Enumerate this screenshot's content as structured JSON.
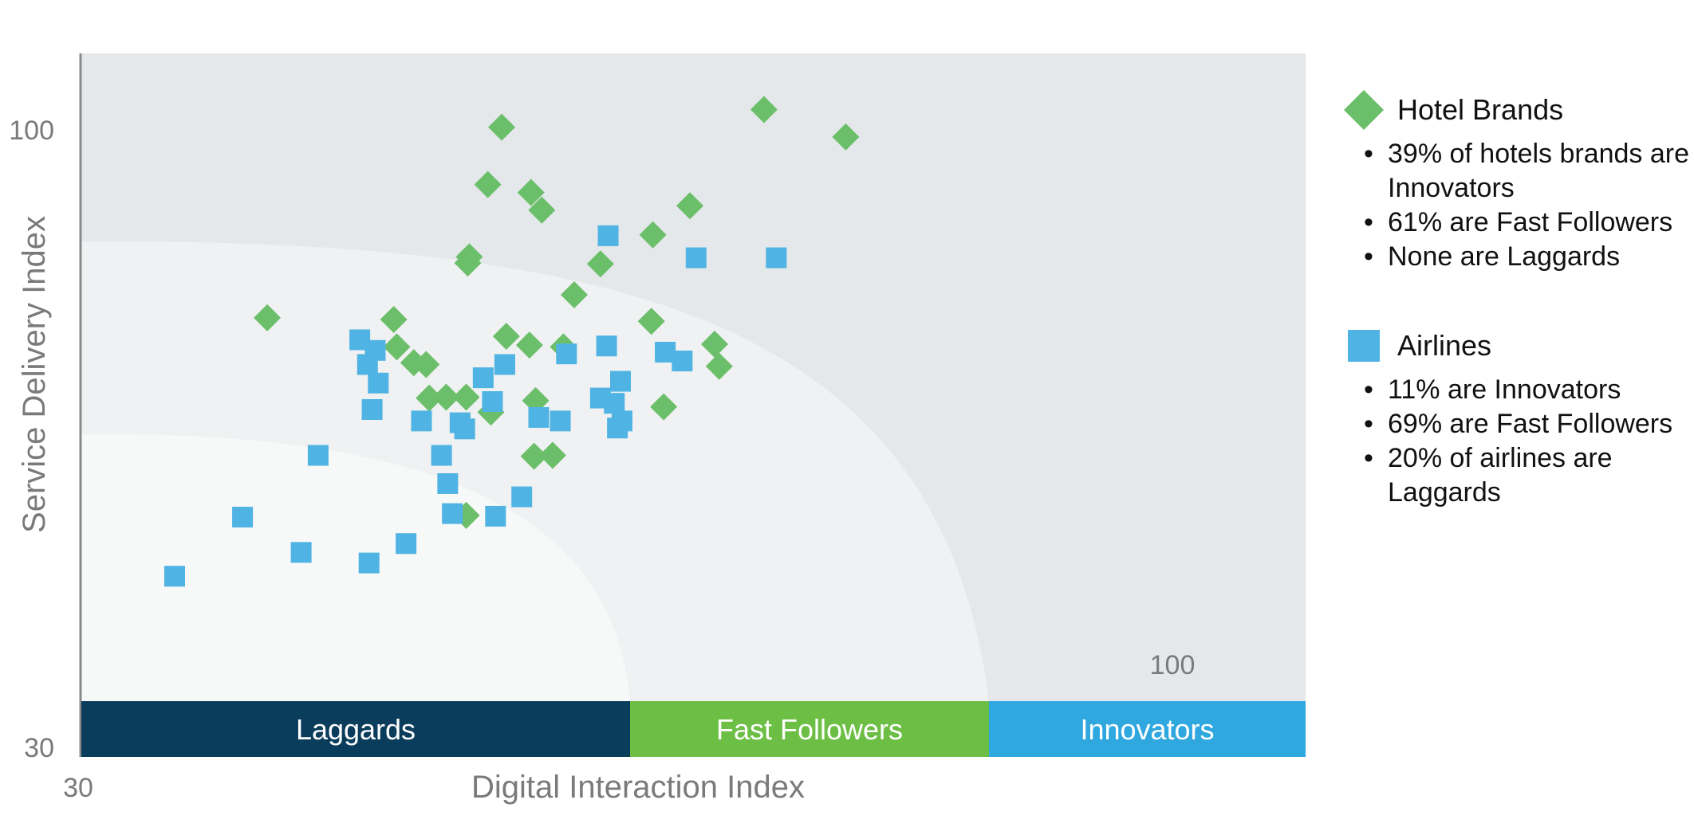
{
  "chart_data": {
    "type": "scatter",
    "title": "",
    "xlabel": "Digital Interaction Index",
    "ylabel": "Service Delivery Index",
    "xlim": [
      30,
      100
    ],
    "ylim": [
      30,
      100
    ],
    "x_ticks": [
      "30"
    ],
    "y_ticks": [
      "100",
      "30"
    ],
    "inner_label": "100",
    "grid": false,
    "legend_position": "right",
    "bands": [
      {
        "label": "Laggards",
        "color": "#0a3d5c"
      },
      {
        "label": "Fast Followers",
        "color": "#6dbe45"
      },
      {
        "label": "Innovators",
        "color": "#2fa8e0"
      }
    ],
    "background_colors": {
      "inner": "#f7f8f8",
      "middle": "#eff1f2",
      "outer": "#e4e8eb"
    },
    "series": [
      {
        "name": "Hotel Brands",
        "marker": "diamond",
        "color": "#6cbf6a",
        "points": [
          [
            57.3,
            100.3
          ],
          [
            74.3,
            102.3
          ],
          [
            79.6,
            99.2
          ],
          [
            56.4,
            93.8
          ],
          [
            59.2,
            92.9
          ],
          [
            59.9,
            90.9
          ],
          [
            69.5,
            91.4
          ],
          [
            67.1,
            88.1
          ],
          [
            55.2,
            85.6
          ],
          [
            55.1,
            84.9
          ],
          [
            63.7,
            84.8
          ],
          [
            62.0,
            81.3
          ],
          [
            67.0,
            78.3
          ],
          [
            42.1,
            78.7
          ],
          [
            50.3,
            78.5
          ],
          [
            57.6,
            76.6
          ],
          [
            71.1,
            75.7
          ],
          [
            59.1,
            75.6
          ],
          [
            61.3,
            75.4
          ],
          [
            50.5,
            75.4
          ],
          [
            71.4,
            73.2
          ],
          [
            51.6,
            73.6
          ],
          [
            52.4,
            73.4
          ],
          [
            52.6,
            69.6
          ],
          [
            53.7,
            69.7
          ],
          [
            55.0,
            69.7
          ],
          [
            59.5,
            69.3
          ],
          [
            67.8,
            68.6
          ],
          [
            56.6,
            68.0
          ],
          [
            59.4,
            63.0
          ],
          [
            60.6,
            63.1
          ],
          [
            55.0,
            56.3
          ]
        ]
      },
      {
        "name": "Airlines",
        "marker": "square",
        "color": "#4fb3e4",
        "points": [
          [
            64.2,
            88.0
          ],
          [
            69.9,
            85.5
          ],
          [
            75.1,
            85.5
          ],
          [
            48.1,
            76.2
          ],
          [
            49.1,
            75.0
          ],
          [
            64.1,
            75.5
          ],
          [
            61.5,
            74.6
          ],
          [
            67.9,
            74.8
          ],
          [
            48.6,
            73.4
          ],
          [
            57.5,
            73.4
          ],
          [
            69.0,
            73.8
          ],
          [
            49.3,
            71.3
          ],
          [
            56.1,
            71.9
          ],
          [
            65.0,
            71.5
          ],
          [
            63.7,
            69.6
          ],
          [
            56.7,
            69.2
          ],
          [
            64.6,
            69.0
          ],
          [
            48.9,
            68.3
          ],
          [
            59.7,
            67.4
          ],
          [
            54.6,
            66.8
          ],
          [
            61.1,
            67.0
          ],
          [
            52.1,
            67.0
          ],
          [
            65.1,
            67.0
          ],
          [
            54.9,
            66.1
          ],
          [
            64.8,
            66.2
          ],
          [
            53.4,
            63.1
          ],
          [
            45.4,
            63.1
          ],
          [
            53.8,
            59.9
          ],
          [
            58.6,
            58.4
          ],
          [
            54.1,
            56.5
          ],
          [
            56.9,
            56.2
          ],
          [
            40.5,
            56.1
          ],
          [
            51.1,
            53.1
          ],
          [
            44.3,
            52.1
          ],
          [
            48.7,
            50.9
          ],
          [
            36.1,
            49.4
          ]
        ]
      }
    ]
  },
  "legend": {
    "hotel": {
      "label": "Hotel Brands",
      "symbol": "diamond-icon",
      "bullets": [
        "39% of hotels brands are Innovators",
        "61% are Fast Followers",
        "None are Laggards"
      ]
    },
    "airlines": {
      "label": "Airlines",
      "symbol": "square-icon",
      "bullets": [
        "11% are Innovators",
        "69% are Fast Followers",
        "20% of airlines are Laggards"
      ]
    }
  }
}
